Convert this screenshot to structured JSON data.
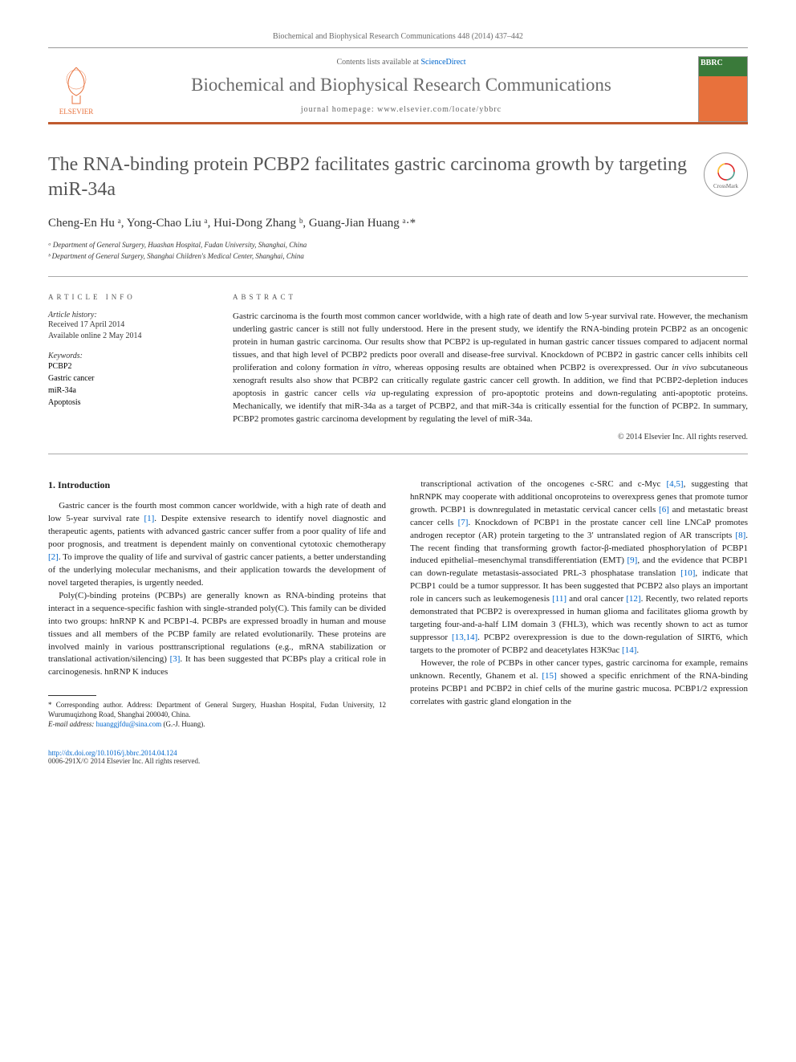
{
  "header": {
    "citation_prefix": "Biochemical and Biophysical Research Communications 448 (2014) 437–442",
    "contents_text": "Contents lists available at ",
    "contents_link": "ScienceDirect",
    "journal_name": "Biochemical and Biophysical Research Communications",
    "homepage_label": "journal homepage: ",
    "homepage_url": "www.elsevier.com/locate/ybbrc",
    "publisher": "ELSEVIER",
    "crossmark": "CrossMark"
  },
  "article": {
    "title": "The RNA-binding protein PCBP2 facilitates gastric carcinoma growth by targeting miR-34a",
    "authors_html": "Cheng-En Hu ᵃ, Yong-Chao Liu ᵃ, Hui-Dong Zhang ᵇ, Guang-Jian Huang ᵃ·*",
    "affiliations": [
      "ᵃ Department of General Surgery, Huashan Hospital, Fudan University, Shanghai, China",
      "ᵇ Department of General Surgery, Shanghai Children's Medical Center, Shanghai, China"
    ]
  },
  "info": {
    "heading": "ARTICLE INFO",
    "history_label": "Article history:",
    "received": "Received 17 April 2014",
    "available": "Available online 2 May 2014",
    "keywords_label": "Keywords:",
    "keywords": [
      "PCBP2",
      "Gastric cancer",
      "miR-34a",
      "Apoptosis"
    ]
  },
  "abstract": {
    "heading": "ABSTRACT",
    "text": "Gastric carcinoma is the fourth most common cancer worldwide, with a high rate of death and low 5-year survival rate. However, the mechanism underling gastric cancer is still not fully understood. Here in the present study, we identify the RNA-binding protein PCBP2 as an oncogenic protein in human gastric carcinoma. Our results show that PCBP2 is up-regulated in human gastric cancer tissues compared to adjacent normal tissues, and that high level of PCBP2 predicts poor overall and disease-free survival. Knockdown of PCBP2 in gastric cancer cells inhibits cell proliferation and colony formation in vitro, whereas opposing results are obtained when PCBP2 is overexpressed. Our in vivo subcutaneous xenograft results also show that PCBP2 can critically regulate gastric cancer cell growth. In addition, we find that PCBP2-depletion induces apoptosis in gastric cancer cells via up-regulating expression of pro-apoptotic proteins and down-regulating anti-apoptotic proteins. Mechanically, we identify that miR-34a as a target of PCBP2, and that miR-34a is critically essential for the function of PCBP2. In summary, PCBP2 promotes gastric carcinoma development by regulating the level of miR-34a.",
    "copyright": "© 2014 Elsevier Inc. All rights reserved."
  },
  "body": {
    "section1_heading": "1. Introduction",
    "col1_p1": "Gastric cancer is the fourth most common cancer worldwide, with a high rate of death and low 5-year survival rate [1]. Despite extensive research to identify novel diagnostic and therapeutic agents, patients with advanced gastric cancer suffer from a poor quality of life and poor prognosis, and treatment is dependent mainly on conventional cytotoxic chemotherapy [2]. To improve the quality of life and survival of gastric cancer patients, a better understanding of the underlying molecular mechanisms, and their application towards the development of novel targeted therapies, is urgently needed.",
    "col1_p2": "Poly(C)-binding proteins (PCBPs) are generally known as RNA-binding proteins that interact in a sequence-specific fashion with single-stranded poly(C). This family can be divided into two groups: hnRNP K and PCBP1-4. PCBPs are expressed broadly in human and mouse tissues and all members of the PCBP family are related evolutionarily. These proteins are involved mainly in various posttranscriptional regulations (e.g., mRNA stabilization or translational activation/silencing) [3]. It has been suggested that PCBPs play a critical role in carcinogenesis. hnRNP K induces",
    "col2_p1": "transcriptional activation of the oncogenes c-SRC and c-Myc [4,5], suggesting that hnRNPK may cooperate with additional oncoproteins to overexpress genes that promote tumor growth. PCBP1 is downregulated in metastatic cervical cancer cells [6] and metastatic breast cancer cells [7]. Knockdown of PCBP1 in the prostate cancer cell line LNCaP promotes androgen receptor (AR) protein targeting to the 3′ untranslated region of AR transcripts [8]. The recent finding that transforming growth factor-β-mediated phosphorylation of PCBP1 induced epithelial–mesenchymal transdifferentiation (EMT) [9], and the evidence that PCBP1 can down-regulate metastasis-associated PRL-3 phosphatase translation [10], indicate that PCBP1 could be a tumor suppressor. It has been suggested that PCBP2 also plays an important role in cancers such as leukemogenesis [11] and oral cancer [12]. Recently, two related reports demonstrated that PCBP2 is overexpressed in human glioma and facilitates glioma growth by targeting four-and-a-half LIM domain 3 (FHL3), which was recently shown to act as tumor suppressor [13,14]. PCBP2 overexpression is due to the down-regulation of SIRT6, which targets to the promoter of PCBP2 and deacetylates H3K9ac [14].",
    "col2_p2": "However, the role of PCBPs in other cancer types, gastric carcinoma for example, remains unknown. Recently, Ghanem et al. [15] showed a specific enrichment of the RNA-binding proteins PCBP1 and PCBP2 in chief cells of the murine gastric mucosa. PCBP1/2 expression correlates with gastric gland elongation in the"
  },
  "footnote": {
    "corr": "* Corresponding author. Address: Department of General Surgery, Huashan Hospital, Fudan University, 12 Wurumuqizhong Road, Shanghai 200040, China.",
    "email_label": "E-mail address: ",
    "email": "huanggjfdu@sina.com",
    "email_suffix": " (G.-J. Huang)."
  },
  "footer": {
    "doi": "http://dx.doi.org/10.1016/j.bbrc.2014.04.124",
    "issn_copyright": "0006-291X/© 2014 Elsevier Inc. All rights reserved."
  },
  "colors": {
    "accent_orange": "#c05a2e",
    "link_blue": "#0066cc",
    "text_gray": "#6b6b6b"
  }
}
